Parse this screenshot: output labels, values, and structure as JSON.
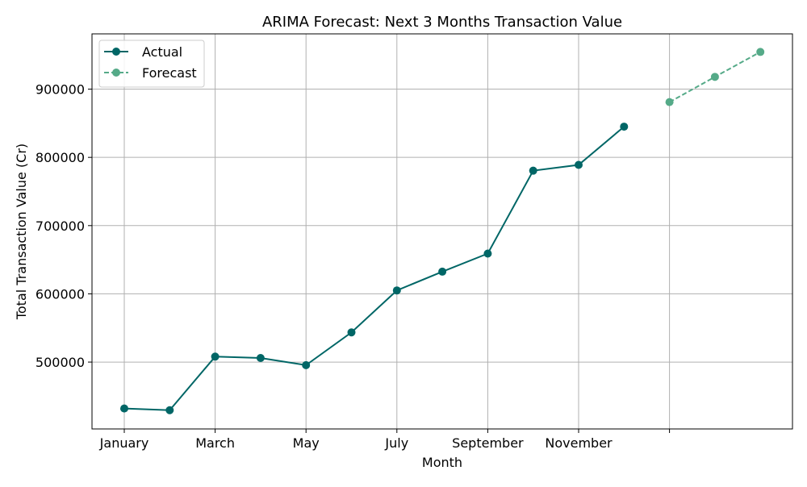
{
  "chart_data": {
    "type": "line",
    "title": "ARIMA Forecast: Next 3 Months Transaction Value",
    "xlabel": "Month",
    "ylabel": "Total Transaction Value (Cr)",
    "x_tick_labels": [
      "January",
      "March",
      "May",
      "July",
      "September",
      "November",
      ""
    ],
    "y_ticks": [
      500000,
      600000,
      700000,
      800000,
      900000
    ],
    "ylim": [
      402000,
      981000
    ],
    "grid": true,
    "legend_position": "top-left",
    "series": [
      {
        "name": "Actual",
        "color": "#006666",
        "line_style": "solid",
        "marker": "circle",
        "x": [
          "January",
          "February",
          "March",
          "April",
          "May",
          "June",
          "July",
          "August",
          "September",
          "October",
          "November",
          "December"
        ],
        "values": [
          432000,
          429500,
          508000,
          506000,
          495500,
          543500,
          605000,
          632500,
          659000,
          780500,
          789000,
          845000
        ]
      },
      {
        "name": "Forecast",
        "color": "#55aa88",
        "line_style": "dashed",
        "marker": "circle",
        "x": [
          "",
          "",
          ""
        ],
        "values": [
          881000,
          918000,
          954500
        ]
      }
    ]
  }
}
